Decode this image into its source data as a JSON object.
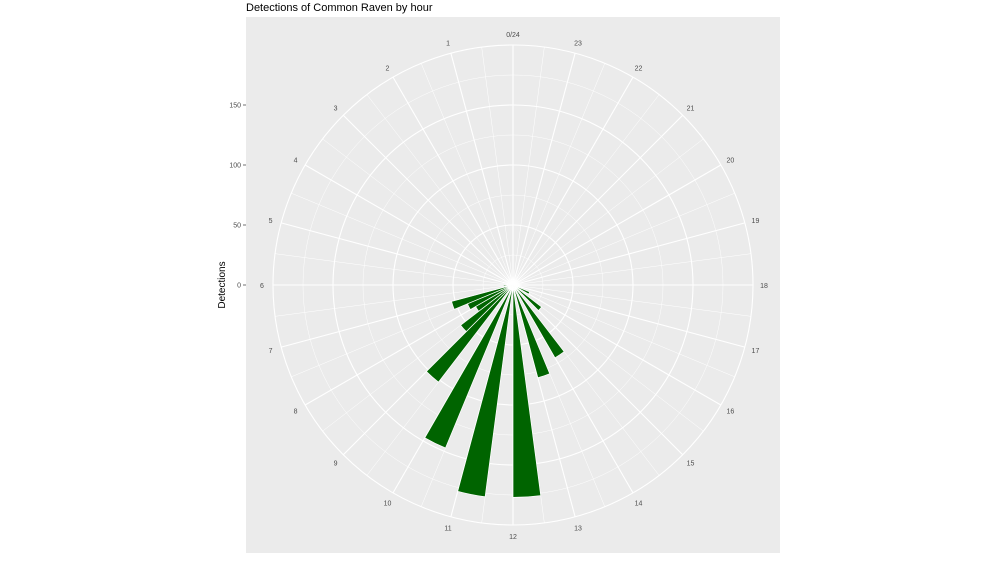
{
  "chart_data": {
    "type": "bar",
    "polar": true,
    "title": "Detections of Common Raven by hour",
    "xlabel": "",
    "ylabel": "Detections",
    "categories": [
      "0/24",
      "1",
      "2",
      "3",
      "4",
      "5",
      "6",
      "7",
      "8",
      "9",
      "10",
      "11",
      "12",
      "13",
      "14",
      "15",
      "16",
      "17",
      "18",
      "19",
      "20",
      "21",
      "22",
      "23"
    ],
    "hour_tick_labels": [
      "0",
      "1",
      "2",
      "3",
      "4",
      "5",
      "6",
      "7",
      "8",
      "9",
      "10",
      "11",
      "12",
      "13",
      "14",
      "15",
      "16",
      "17",
      "18",
      "19",
      "20",
      "21",
      "22",
      "23"
    ],
    "bars": [
      {
        "hour": 6,
        "value": 8
      },
      {
        "hour": 6.5,
        "value": 3
      },
      {
        "hour": 7,
        "value": 53
      },
      {
        "hour": 7.5,
        "value": 41
      },
      {
        "hour": 8,
        "value": 36
      },
      {
        "hour": 8.5,
        "value": 55
      },
      {
        "hour": 9,
        "value": 102
      },
      {
        "hour": 10,
        "value": 147
      },
      {
        "hour": 11,
        "value": 178
      },
      {
        "hour": 12,
        "value": 177
      },
      {
        "hour": 13,
        "value": 80
      },
      {
        "hour": 14,
        "value": 70
      },
      {
        "hour": 15,
        "value": 30
      },
      {
        "hour": 16,
        "value": 15
      }
    ],
    "y_ticks": [
      0,
      50,
      100,
      150
    ],
    "ylim": [
      0,
      200
    ],
    "bar_color": "#006400",
    "panel_background": "#ebebeb",
    "grid": true
  }
}
